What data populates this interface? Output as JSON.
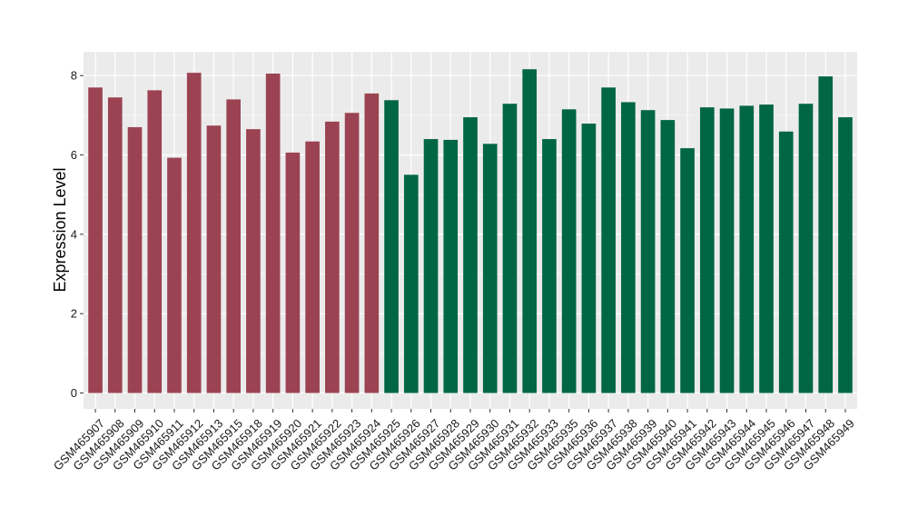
{
  "colors": {
    "panel_bg": "#ebebeb",
    "grid": "#ffffff",
    "group_a": "#9b4352",
    "group_b": "#006643"
  },
  "chart_data": {
    "type": "bar",
    "title": "",
    "xlabel": "",
    "ylabel": "Expression Level",
    "ylim": [
      -0.4,
      8.6
    ],
    "yticks": [
      0,
      2,
      4,
      6,
      8
    ],
    "grid": true,
    "legend": "none",
    "categories": [
      "GSM465907",
      "GSM465908",
      "GSM465909",
      "GSM465910",
      "GSM465911",
      "GSM465912",
      "GSM465913",
      "GSM465915",
      "GSM465918",
      "GSM465919",
      "GSM465920",
      "GSM465921",
      "GSM465922",
      "GSM465923",
      "GSM465924",
      "GSM465925",
      "GSM465926",
      "GSM465927",
      "GSM465928",
      "GSM465929",
      "GSM465930",
      "GSM465931",
      "GSM465932",
      "GSM465933",
      "GSM465935",
      "GSM465936",
      "GSM465937",
      "GSM465938",
      "GSM465939",
      "GSM465940",
      "GSM465941",
      "GSM465942",
      "GSM465943",
      "GSM465944",
      "GSM465945",
      "GSM465946",
      "GSM465947",
      "GSM465948",
      "GSM465949"
    ],
    "values": [
      7.7,
      7.45,
      6.7,
      7.63,
      5.93,
      8.07,
      6.74,
      7.4,
      6.65,
      8.05,
      6.06,
      6.34,
      6.84,
      7.06,
      7.55,
      7.38,
      5.5,
      6.4,
      6.38,
      6.95,
      6.28,
      7.29,
      8.16,
      6.4,
      7.15,
      6.79,
      7.7,
      7.33,
      7.13,
      6.88,
      6.17,
      7.2,
      7.17,
      7.24,
      7.27,
      6.59,
      7.29,
      7.98,
      6.95
    ],
    "groups": [
      "a",
      "a",
      "a",
      "a",
      "a",
      "a",
      "a",
      "a",
      "a",
      "a",
      "a",
      "a",
      "a",
      "a",
      "a",
      "b",
      "b",
      "b",
      "b",
      "b",
      "b",
      "b",
      "b",
      "b",
      "b",
      "b",
      "b",
      "b",
      "b",
      "b",
      "b",
      "b",
      "b",
      "b",
      "b",
      "b",
      "b",
      "b",
      "b"
    ]
  }
}
